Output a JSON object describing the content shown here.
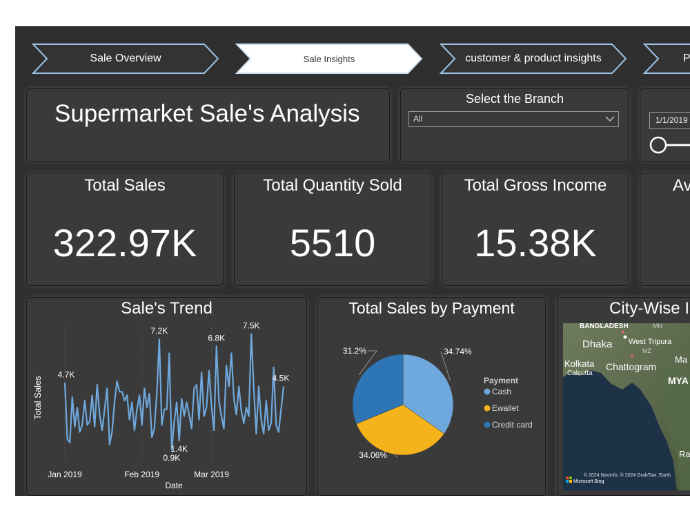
{
  "nav": {
    "items": [
      {
        "label": "Sale Overview",
        "active": false
      },
      {
        "label": "Sale Insights",
        "active": true
      },
      {
        "label": "customer & product insights",
        "active": false
      },
      {
        "label": "P",
        "active": false
      }
    ]
  },
  "header": {
    "title": "Supermarket Sale's Analysis"
  },
  "branch_slicer": {
    "title": "Select the Branch",
    "value": "All"
  },
  "date_slicer": {
    "start": "1/1/2019"
  },
  "kpis": [
    {
      "title": "Total Sales",
      "value": "322.97K"
    },
    {
      "title": "Total Quantity Sold",
      "value": "5510"
    },
    {
      "title": "Total Gross Income",
      "value": "15.38K"
    },
    {
      "title": "Av",
      "value": ""
    }
  ],
  "colors": {
    "line": "#6fa8dc",
    "cash": "#6fa8dc",
    "ewallet": "#f5b31b",
    "credit_card": "#2e75b6",
    "panel": "#3a3a3a",
    "background": "#2f2f2f"
  },
  "trend_chart": {
    "title": "Sale's Trend",
    "ylabel": "Total Sales",
    "xlabel": "Date"
  },
  "payment_chart": {
    "title": "Total Sales by Payment"
  },
  "map": {
    "title": "City-Wise I",
    "labels": [
      "BANGLADESH",
      "MN",
      "Dhaka",
      "West Tripura",
      "MZ",
      "Kolkata",
      "Calcutta",
      "Chattogram",
      "Ma",
      "MYA",
      "Ra"
    ],
    "attribution": "© 2024 NavInfo, © 2024 GrabTaxi, Earth",
    "provider": "Microsoft Bing"
  },
  "chart_data": [
    {
      "type": "line",
      "title": "Sale's Trend",
      "xlabel": "Date",
      "ylabel": "Total Sales",
      "x_ticks": [
        "Jan 2019",
        "Feb 2019",
        "Mar 2019"
      ],
      "x": [
        "2019-01-01",
        "2019-01-02",
        "2019-01-03",
        "2019-01-04",
        "2019-01-05",
        "2019-01-06",
        "2019-01-07",
        "2019-01-08",
        "2019-01-09",
        "2019-01-10",
        "2019-01-11",
        "2019-01-12",
        "2019-01-13",
        "2019-01-14",
        "2019-01-15",
        "2019-01-16",
        "2019-01-17",
        "2019-01-18",
        "2019-01-19",
        "2019-01-20",
        "2019-01-21",
        "2019-01-22",
        "2019-01-23",
        "2019-01-24",
        "2019-01-25",
        "2019-01-26",
        "2019-01-27",
        "2019-01-28",
        "2019-01-29",
        "2019-01-30",
        "2019-01-31",
        "2019-02-01",
        "2019-02-02",
        "2019-02-03",
        "2019-02-04",
        "2019-02-05",
        "2019-02-06",
        "2019-02-07",
        "2019-02-08",
        "2019-02-09",
        "2019-02-10",
        "2019-02-11",
        "2019-02-12",
        "2019-02-13",
        "2019-02-14",
        "2019-02-15",
        "2019-02-16",
        "2019-02-17",
        "2019-02-18",
        "2019-02-19",
        "2019-02-20",
        "2019-02-21",
        "2019-02-22",
        "2019-02-23",
        "2019-02-24",
        "2019-02-25",
        "2019-02-26",
        "2019-02-27",
        "2019-02-28",
        "2019-03-01",
        "2019-03-02",
        "2019-03-03",
        "2019-03-04",
        "2019-03-05",
        "2019-03-06",
        "2019-03-07",
        "2019-03-08",
        "2019-03-09",
        "2019-03-10",
        "2019-03-11",
        "2019-03-12",
        "2019-03-13",
        "2019-03-14",
        "2019-03-15",
        "2019-03-16",
        "2019-03-17",
        "2019-03-18",
        "2019-03-19",
        "2019-03-20",
        "2019-03-21",
        "2019-03-22",
        "2019-03-23",
        "2019-03-24",
        "2019-03-25",
        "2019-03-26",
        "2019-03-27",
        "2019-03-28",
        "2019-03-29",
        "2019-03-30"
      ],
      "values": [
        4.7,
        1.5,
        1.3,
        3.9,
        2.2,
        3.3,
        1.9,
        2.3,
        3.7,
        2.3,
        2.5,
        4.0,
        2.2,
        4.6,
        2.9,
        2.0,
        3.2,
        4.4,
        1.2,
        1.9,
        3.6,
        4.8,
        4.2,
        4.2,
        3.7,
        4.0,
        2.6,
        3.6,
        2.0,
        3.2,
        4.0,
        2.3,
        4.4,
        3.3,
        4.1,
        1.6,
        2.1,
        4.1,
        7.2,
        2.3,
        3.2,
        3.2,
        6.4,
        0.9,
        2.5,
        3.6,
        1.4,
        3.8,
        2.8,
        3.6,
        2.9,
        2.1,
        4.4,
        4.6,
        2.6,
        5.3,
        2.8,
        3.3,
        5.4,
        3.4,
        2.0,
        6.8,
        3.7,
        2.8,
        2.1,
        5.7,
        4.5,
        6.4,
        3.8,
        2.9,
        4.5,
        3.1,
        2.4,
        3.3,
        2.8,
        7.5,
        4.4,
        1.8,
        4.5,
        2.6,
        1.8,
        3.7,
        2.0,
        2.4,
        5.6,
        2.3,
        1.9,
        3.2,
        4.5
      ],
      "data_labels": [
        {
          "text": "4.7K",
          "index": 0
        },
        {
          "text": "7.2K",
          "index": 38
        },
        {
          "text": "0.9K",
          "index": 43
        },
        {
          "text": "1.4K",
          "index": 46
        },
        {
          "text": "6.8K",
          "index": 61
        },
        {
          "text": "7.5K",
          "index": 75
        },
        {
          "text": "4.5K",
          "index": 88
        }
      ]
    },
    {
      "type": "pie",
      "title": "Total Sales by Payment",
      "legend_title": "Payment",
      "legend_position": "right",
      "slices": [
        {
          "name": "Cash",
          "value": 34.74,
          "label": "34.74%",
          "color": "#6fa8dc"
        },
        {
          "name": "Ewallet",
          "value": 34.06,
          "label": "34.06%",
          "color": "#f5b31b"
        },
        {
          "name": "Credit card",
          "value": 31.2,
          "label": "31.2%",
          "color": "#2e75b6"
        }
      ]
    }
  ]
}
